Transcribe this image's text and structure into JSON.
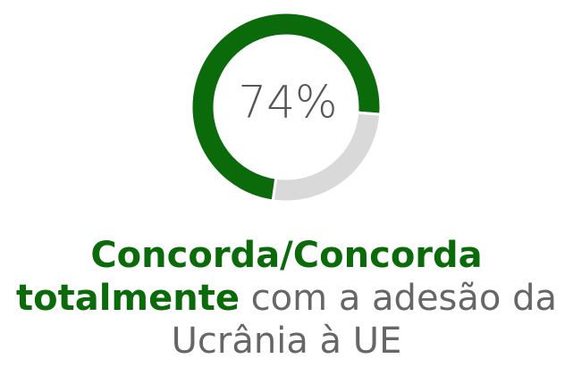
{
  "chart_data": {
    "type": "donut",
    "values": [
      74,
      26
    ],
    "value_labels": [
      "74%",
      null
    ],
    "colors": [
      "#0b6b0b",
      "#d9d9d9"
    ],
    "caption": {
      "highlight": "Concorda/Concorda totalmente",
      "text": "com a adesão da Ucrânia à UE"
    }
  }
}
